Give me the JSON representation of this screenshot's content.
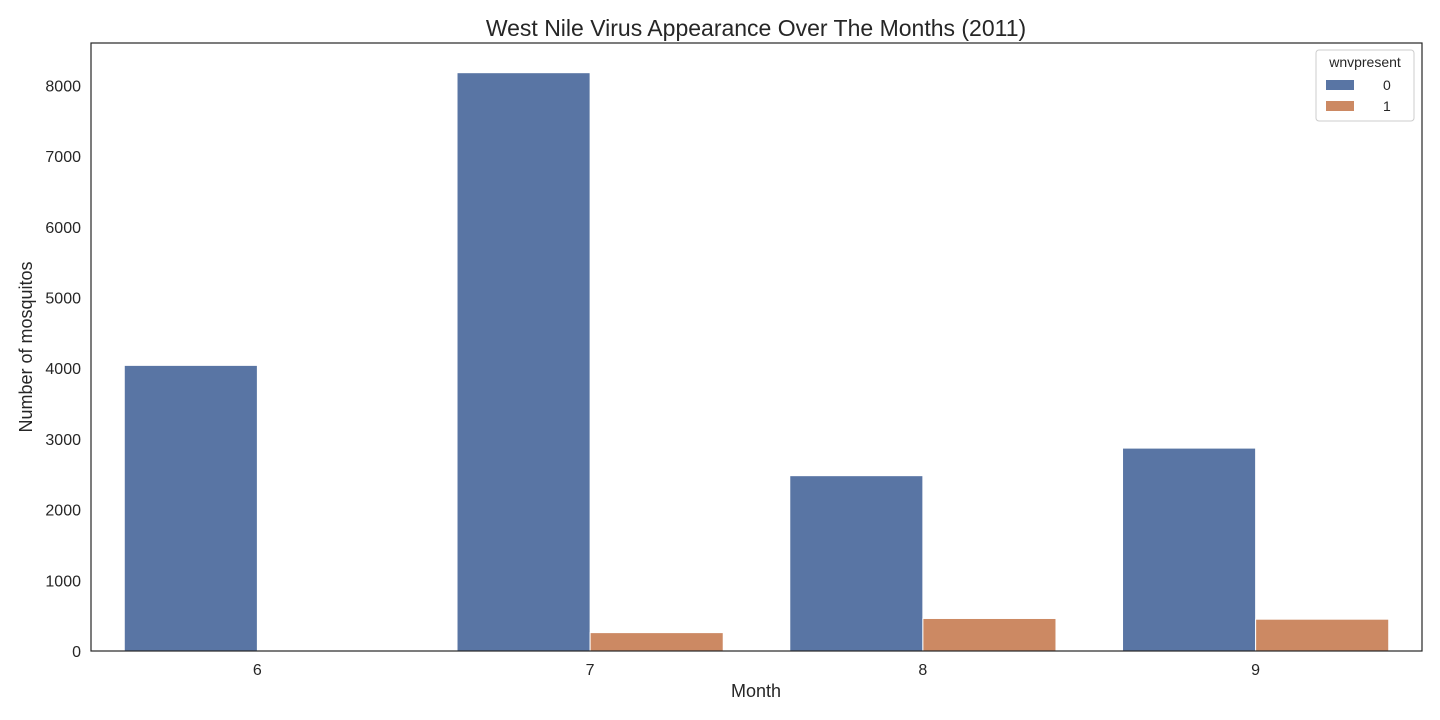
{
  "chart_data": {
    "type": "bar",
    "title": "West Nile Virus Appearance Over The Months (2011)",
    "xlabel": "Month",
    "ylabel": "Number of mosquitos",
    "categories": [
      "6",
      "7",
      "8",
      "9"
    ],
    "ylim": [
      0,
      8600
    ],
    "yticks": [
      0,
      1000,
      2000,
      3000,
      4000,
      5000,
      6000,
      7000,
      8000
    ],
    "grid": false,
    "legend": {
      "title": "wnvpresent",
      "position": "top-right"
    },
    "series": [
      {
        "name": "0",
        "color": "#5975a4",
        "values": [
          4040,
          8180,
          2480,
          2870
        ]
      },
      {
        "name": "1",
        "color": "#cc8963",
        "values": [
          0,
          260,
          460,
          450
        ]
      }
    ]
  }
}
